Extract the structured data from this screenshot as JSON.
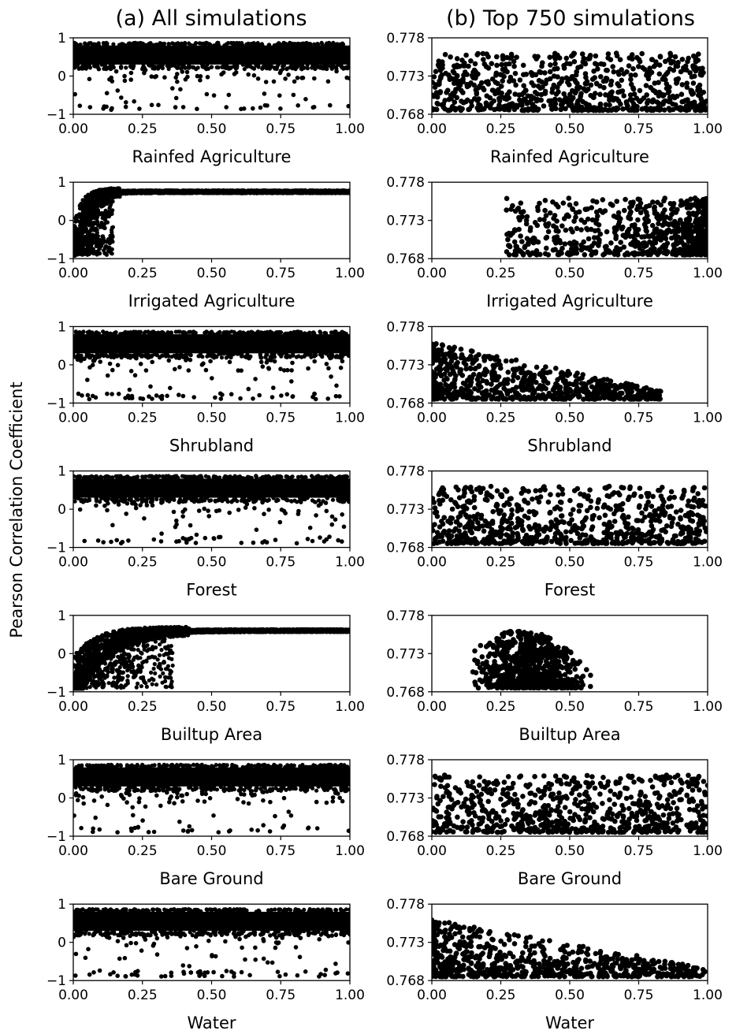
{
  "figure": {
    "columns": [
      {
        "title": "(a)  All simulations"
      },
      {
        "title": "(b)  Top 750 simulations"
      }
    ],
    "ylabel": "Pearson Correlation Coefficient",
    "colors": {
      "points": "#000000",
      "background": "#ffffff"
    }
  },
  "chart_data": [
    {
      "type": "scatter",
      "column": "a",
      "xlabel": "Rainfed Agriculture",
      "xlim": [
        0,
        1
      ],
      "ylim": [
        -1,
        1
      ],
      "xticks": [
        "0.00",
        "0.25",
        "0.50",
        "0.75",
        "1.00"
      ],
      "yticks": [
        "-1",
        "0",
        "1"
      ],
      "distribution": {
        "x": "uniform 0-1",
        "y_band": [
          0.3,
          0.8
        ],
        "outliers_y": [
          -0.9,
          0.3
        ],
        "outlier_count": 110
      }
    },
    {
      "type": "scatter",
      "column": "b",
      "xlabel": "Rainfed Agriculture",
      "xlim": [
        0,
        1
      ],
      "ylim": [
        0.768,
        0.778
      ],
      "xticks": [
        "0.00",
        "0.25",
        "0.50",
        "0.75",
        "1.00"
      ],
      "yticks": [
        "0.768",
        "0.773",
        "0.778"
      ],
      "distribution": {
        "x_range": [
          0,
          1
        ],
        "x_peak": null,
        "y_range": [
          0.7685,
          0.776
        ],
        "y_skew": "low",
        "count": 750
      }
    },
    {
      "type": "scatter",
      "column": "a",
      "xlabel": "Irrigated Agriculture",
      "xlim": [
        0,
        1
      ],
      "ylim": [
        -1,
        1
      ],
      "xticks": [
        "0.00",
        "0.25",
        "0.50",
        "0.75",
        "1.00"
      ],
      "yticks": [
        "-1",
        "0",
        "1"
      ],
      "distribution": {
        "saturating_curve": {
          "x_knee": 0.12,
          "y_start": -0.85,
          "y_end": 0.75
        }
      }
    },
    {
      "type": "scatter",
      "column": "b",
      "xlabel": "Irrigated Agriculture",
      "xlim": [
        0,
        1
      ],
      "ylim": [
        0.768,
        0.778
      ],
      "xticks": [
        "0.00",
        "0.25",
        "0.50",
        "0.75",
        "1.00"
      ],
      "yticks": [
        "0.768",
        "0.773",
        "0.778"
      ],
      "distribution": {
        "x_range": [
          0.27,
          1
        ],
        "x_peak": 0.9,
        "y_range": [
          0.7685,
          0.776
        ],
        "y_skew": "low",
        "count": 750
      }
    },
    {
      "type": "scatter",
      "column": "a",
      "xlabel": "Shrubland",
      "xlim": [
        0,
        1
      ],
      "ylim": [
        -1,
        1
      ],
      "xticks": [
        "0.00",
        "0.25",
        "0.50",
        "0.75",
        "1.00"
      ],
      "yticks": [
        "-1",
        "0",
        "1"
      ],
      "distribution": {
        "x": "uniform 0-1",
        "y_band": [
          0.3,
          0.8
        ],
        "outliers_y": [
          -0.9,
          0.3
        ],
        "outlier_count": 130
      }
    },
    {
      "type": "scatter",
      "column": "b",
      "xlabel": "Shrubland",
      "xlim": [
        0,
        1
      ],
      "ylim": [
        0.768,
        0.778
      ],
      "xticks": [
        "0.00",
        "0.25",
        "0.50",
        "0.75",
        "1.00"
      ],
      "yticks": [
        "0.768",
        "0.773",
        "0.778"
      ],
      "distribution": {
        "x_range": [
          0,
          0.83
        ],
        "x_peak": 0.0,
        "y_range": [
          0.7685,
          0.776
        ],
        "y_decreasing_with_x": true,
        "count": 750
      }
    },
    {
      "type": "scatter",
      "column": "a",
      "xlabel": "Forest",
      "xlim": [
        0,
        1
      ],
      "ylim": [
        -1,
        1
      ],
      "xticks": [
        "0.00",
        "0.25",
        "0.50",
        "0.75",
        "1.00"
      ],
      "yticks": [
        "-1",
        "0",
        "1"
      ],
      "distribution": {
        "x": "uniform 0-1",
        "y_band": [
          0.3,
          0.8
        ],
        "outliers_y": [
          -0.9,
          0.3
        ],
        "outlier_count": 115
      }
    },
    {
      "type": "scatter",
      "column": "b",
      "xlabel": "Forest",
      "xlim": [
        0,
        1
      ],
      "ylim": [
        0.768,
        0.778
      ],
      "xticks": [
        "0.00",
        "0.25",
        "0.50",
        "0.75",
        "1.00"
      ],
      "yticks": [
        "0.768",
        "0.773",
        "0.778"
      ],
      "distribution": {
        "x_range": [
          0,
          1
        ],
        "x_peak": null,
        "y_range": [
          0.7685,
          0.776
        ],
        "y_skew": "low",
        "count": 750
      }
    },
    {
      "type": "scatter",
      "column": "a",
      "xlabel": "Builtup Area",
      "xlim": [
        0,
        1
      ],
      "ylim": [
        -1,
        1
      ],
      "xticks": [
        "0.00",
        "0.25",
        "0.50",
        "0.75",
        "1.00"
      ],
      "yticks": [
        "-1",
        "0",
        "1"
      ],
      "distribution": {
        "saturating_curve": {
          "x_knee": 0.3,
          "y_start": -0.85,
          "y_end": 0.6
        }
      }
    },
    {
      "type": "scatter",
      "column": "b",
      "xlabel": "Builtup Area",
      "xlim": [
        0,
        1
      ],
      "ylim": [
        0.768,
        0.778
      ],
      "xticks": [
        "0.00",
        "0.25",
        "0.50",
        "0.75",
        "1.00"
      ],
      "yticks": [
        "0.768",
        "0.773",
        "0.778"
      ],
      "distribution": {
        "x_range": [
          0.1,
          0.62
        ],
        "x_peak": 0.32,
        "y_range": [
          0.7685,
          0.776
        ],
        "dome": true,
        "count": 750
      }
    },
    {
      "type": "scatter",
      "column": "a",
      "xlabel": "Bare Ground",
      "xlim": [
        0,
        1
      ],
      "ylim": [
        -1,
        1
      ],
      "xticks": [
        "0.00",
        "0.25",
        "0.50",
        "0.75",
        "1.00"
      ],
      "yticks": [
        "-1",
        "0",
        "1"
      ],
      "distribution": {
        "x": "uniform 0-1",
        "y_band": [
          0.3,
          0.8
        ],
        "outliers_y": [
          -0.9,
          0.3
        ],
        "outlier_count": 120
      }
    },
    {
      "type": "scatter",
      "column": "b",
      "xlabel": "Bare Ground",
      "xlim": [
        0,
        1
      ],
      "ylim": [
        0.768,
        0.778
      ],
      "xticks": [
        "0.00",
        "0.25",
        "0.50",
        "0.75",
        "1.00"
      ],
      "yticks": [
        "0.768",
        "0.773",
        "0.778"
      ],
      "distribution": {
        "x_range": [
          0,
          1
        ],
        "x_peak": null,
        "y_range": [
          0.7685,
          0.776
        ],
        "y_skew": "low",
        "count": 750
      }
    },
    {
      "type": "scatter",
      "column": "a",
      "xlabel": "Water",
      "xlim": [
        0,
        1
      ],
      "ylim": [
        -1,
        1
      ],
      "xticks": [
        "0.00",
        "0.25",
        "0.50",
        "0.75",
        "1.00"
      ],
      "yticks": [
        "-1",
        "0",
        "1"
      ],
      "distribution": {
        "x": "uniform 0-1",
        "y_band": [
          0.3,
          0.8
        ],
        "outliers_y": [
          -0.9,
          0.3
        ],
        "outlier_count": 120
      }
    },
    {
      "type": "scatter",
      "column": "b",
      "xlabel": "Water",
      "xlim": [
        0,
        1
      ],
      "ylim": [
        0.768,
        0.778
      ],
      "xticks": [
        "0.00",
        "0.25",
        "0.50",
        "0.75",
        "1.00"
      ],
      "yticks": [
        "0.768",
        "0.773",
        "0.778"
      ],
      "distribution": {
        "x_range": [
          0,
          1
        ],
        "x_peak": null,
        "y_range": [
          0.7685,
          0.776
        ],
        "y_decreasing_with_x": true,
        "count": 750
      }
    }
  ]
}
